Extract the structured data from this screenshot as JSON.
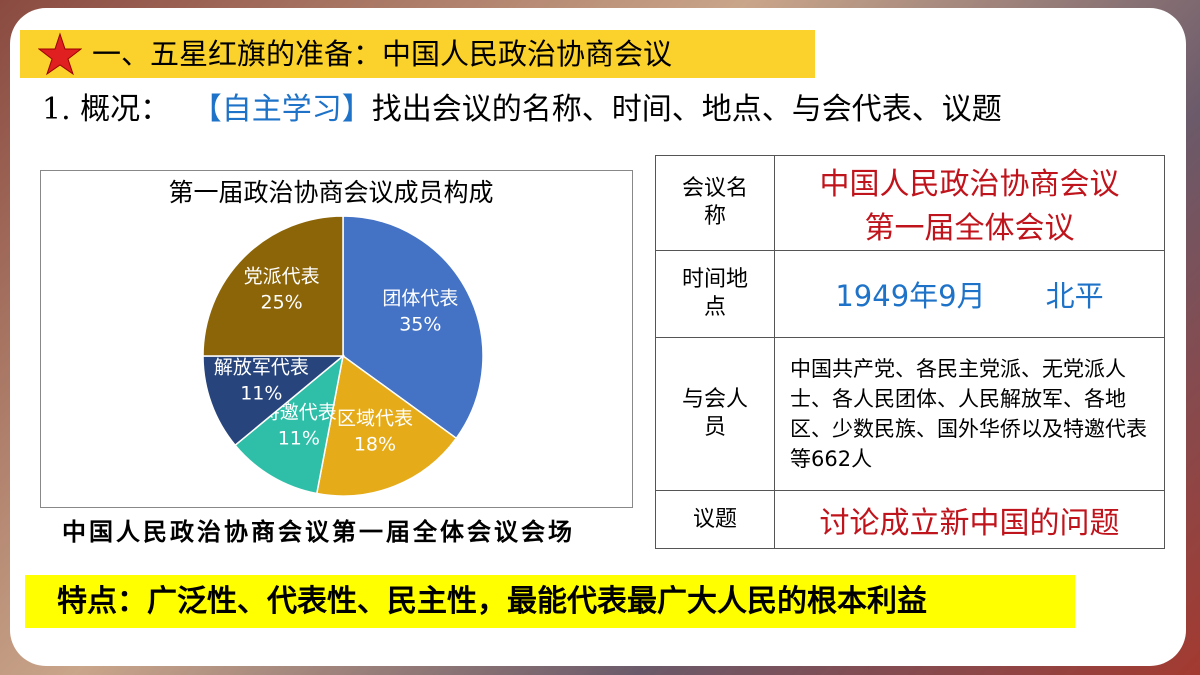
{
  "header": {
    "title": "一、五星红旗的准备：中国人民政治协商会议"
  },
  "intro": {
    "label": "1. 概况：",
    "tag": "【自主学习】",
    "task": "找出会议的名称、时间、地点、与会代表、议题"
  },
  "chart_data": {
    "type": "pie",
    "title": "第一届政治协商会议成员构成",
    "categories": [
      "团体代表",
      "区域代表",
      "特邀代表",
      "解放军代表",
      "党派代表"
    ],
    "values": [
      35,
      18,
      11,
      11,
      25
    ],
    "value_labels": [
      "35%",
      "18%",
      "11%",
      "11%",
      "25%"
    ],
    "colors": [
      "#4472c4",
      "#e5ab18",
      "#2fbfa8",
      "#27457c",
      "#8c6508"
    ]
  },
  "caption": "中国人民政治协商会议第一届全体会议会场",
  "table": {
    "rows": [
      {
        "label": "会议名称",
        "value": [
          "中国人民政治协商会议",
          "第一届全体会议"
        ]
      },
      {
        "label": "时间地点",
        "value": [
          "1949年9月",
          "北平"
        ]
      },
      {
        "label": "与会人员",
        "value": [
          "中国共产党、各民主党派、无党派人士、各人民团体、人民解放军、各地区、少数民族、国外华侨以及特邀代表等662人"
        ]
      },
      {
        "label": "议题",
        "value": [
          "讨论成立新中国的问题"
        ]
      }
    ]
  },
  "footer": {
    "text": "特点：广泛性、代表性、民主性，最能代表最广大人民的根本利益"
  }
}
